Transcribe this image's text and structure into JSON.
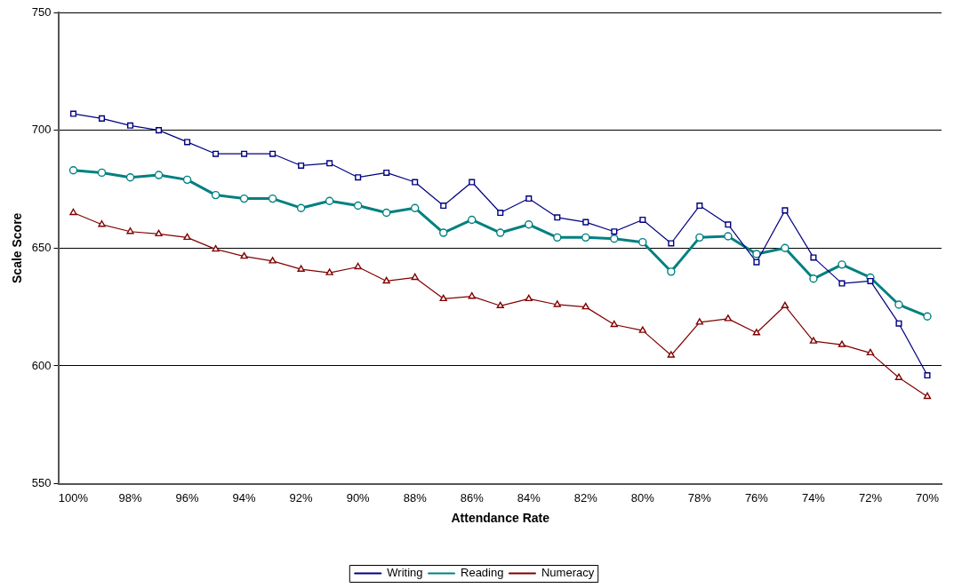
{
  "chart_data": {
    "type": "line",
    "xlabel": "Attendance Rate",
    "ylabel": "Scale Score",
    "categories": [
      "100%",
      null,
      "98%",
      null,
      "96%",
      null,
      "94%",
      null,
      "92%",
      null,
      "90%",
      null,
      "88%",
      null,
      "86%",
      null,
      "84%",
      null,
      "82%",
      null,
      "80%",
      null,
      "78%",
      null,
      "76%",
      null,
      "74%",
      null,
      "72%",
      null,
      "70%"
    ],
    "series": [
      {
        "name": "Writing",
        "color": "#000080",
        "marker": "square",
        "values": [
          707,
          705,
          702,
          700,
          695,
          690,
          690,
          690,
          685,
          686,
          680,
          682,
          678,
          668,
          678,
          665,
          671,
          663,
          661,
          657,
          662,
          652,
          668,
          660,
          644,
          666,
          646,
          635,
          636,
          618,
          596
        ]
      },
      {
        "name": "Reading",
        "color": "#008080",
        "marker": "circle",
        "values": [
          683,
          682,
          680,
          681,
          679,
          672.5,
          671,
          671,
          667,
          670,
          668,
          665,
          667,
          656.5,
          662,
          656.5,
          660,
          654.5,
          654.5,
          654,
          652.5,
          640,
          654.5,
          655,
          647.5,
          650,
          637,
          643,
          637.5,
          626,
          621
        ]
      },
      {
        "name": "Numeracy",
        "color": "#800000",
        "marker": "triangle",
        "values": [
          665,
          660,
          657,
          656,
          654.5,
          649.5,
          646.5,
          644.5,
          641,
          639.5,
          642,
          636,
          637.5,
          628.5,
          629.5,
          625.5,
          628.5,
          626,
          625,
          617.5,
          615,
          604.5,
          618.5,
          620,
          614,
          625.5,
          610.5,
          609,
          605.5,
          595,
          587
        ]
      }
    ],
    "ylim": [
      550,
      750
    ],
    "yticks": [
      550,
      600,
      650,
      700,
      750
    ],
    "grid": "y",
    "legend": "bottom",
    "line_style": "solid"
  }
}
